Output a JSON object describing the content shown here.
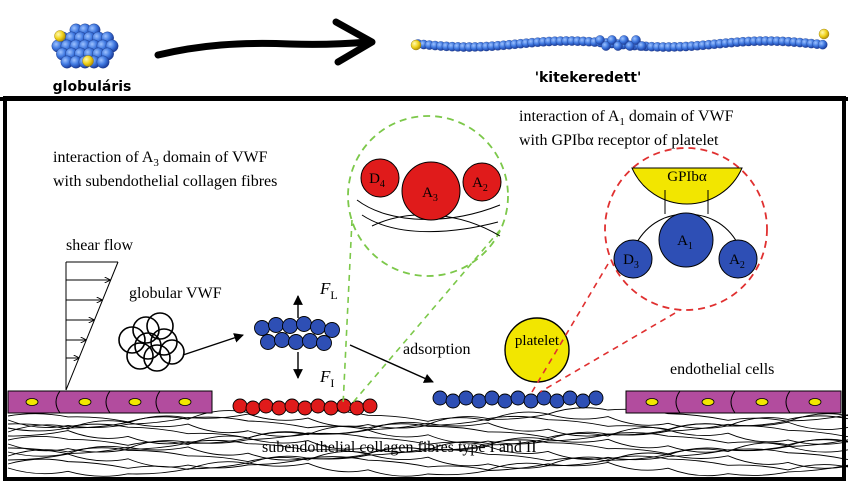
{
  "top": {
    "label_left": "globuláris",
    "label_right": "'kitekeredett'"
  },
  "diagram": {
    "caption_a3_line1": "interaction of A",
    "caption_a3_sub": "3",
    "caption_a3_line1_tail": " domain of VWF",
    "caption_a3_line2": "with subendothelial collagen fibres",
    "caption_a1_line1": "interaction of A",
    "caption_a1_sub": "1",
    "caption_a1_line1_tail": " domain of VWF",
    "caption_a1_line2": "with GPIbα receptor of platelet",
    "shear_flow": "shear flow",
    "globular_vwf": "globular VWF",
    "force_lift": "F",
    "force_lift_sub": "L",
    "force_adh": "F",
    "force_adh_sub": "I",
    "adsorption": "adsorption",
    "platelet": "platelet",
    "endothelial_cells": "endothelial cells",
    "collagen_caption": "subendothelial collagen fibres type I and II",
    "zoom_green": {
      "d4": "D",
      "d4_sub": "4",
      "a3": "A",
      "a3_sub": "3",
      "a2": "A",
      "a2_sub": "2"
    },
    "zoom_red": {
      "gp": "GPIbα",
      "a1": "A",
      "a1_sub": "1",
      "d3": "D",
      "d3_sub": "3",
      "a2": "A",
      "a2_sub": "2"
    }
  },
  "colors": {
    "blue": "#2e4fb5",
    "red": "#e01b1b",
    "yellow": "#f2e600",
    "magenta": "#b24c9e",
    "green_dash": "#7cc84a",
    "red_dash": "#e03030"
  }
}
